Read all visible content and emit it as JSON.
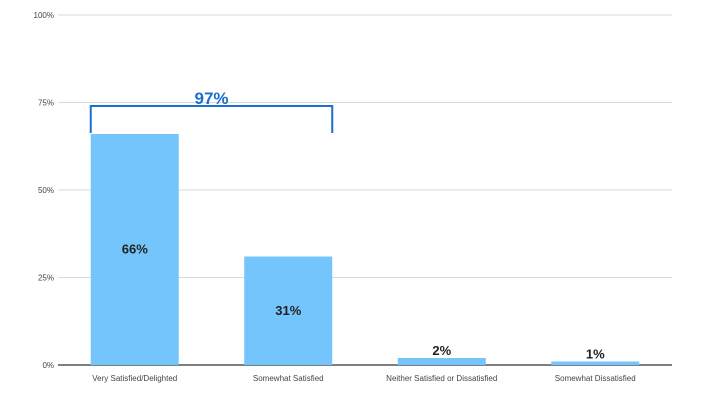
{
  "chart_data": {
    "type": "bar",
    "categories": [
      "Very Satisfied/Delighted",
      "Somewhat Satisfied",
      "Neither Satisfied or Dissatisfied",
      "Somewhat Dissatisfied"
    ],
    "values": [
      66,
      31,
      2,
      1
    ],
    "data_labels": [
      "66%",
      "31%",
      "2%",
      "1%"
    ],
    "ylim": [
      0,
      100
    ],
    "yticks": [
      0,
      25,
      50,
      75,
      100
    ],
    "ytick_labels": [
      "0%",
      "25%",
      "50%",
      "75%",
      "100%"
    ],
    "grid": true,
    "bar_color": "#74c5fb",
    "annotation": {
      "type": "bracket",
      "label": "97%",
      "spans_categories": [
        0,
        1
      ],
      "level": 74,
      "color": "#1a6fd1"
    }
  }
}
